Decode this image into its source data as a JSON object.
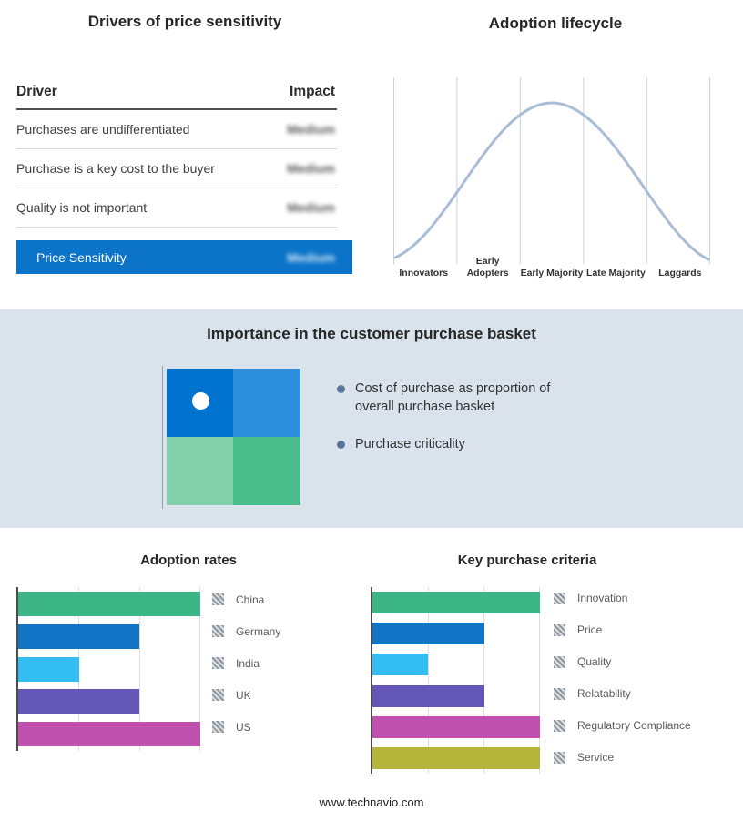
{
  "drivers": {
    "title": "Drivers of price sensitivity",
    "columns": {
      "driver": "Driver",
      "impact": "Impact"
    },
    "rows": [
      {
        "driver": "Purchases are undifferentiated",
        "impact": "Medium"
      },
      {
        "driver": "Purchase is a key cost to the buyer",
        "impact": "Medium"
      },
      {
        "driver": "Quality is not important",
        "impact": "Medium"
      }
    ],
    "highlight_row": {
      "driver": "Price Sensitivity",
      "impact": "Medium"
    },
    "highlight_color": "#0b74c9"
  },
  "basket": {
    "title": "Importance in the customer purchase basket",
    "bullets": [
      "Cost of purchase as proportion of overall purchase basket",
      "Purchase criticality"
    ],
    "quadrant_colors": {
      "top_left": "#0072d0",
      "top_right": "#2e8ede",
      "bottom_left": "#82cfab",
      "bottom_right": "#49bd8c"
    },
    "band_color": "#dae2ec"
  },
  "chart_data": [
    {
      "type": "line",
      "title": "Adoption lifecycle",
      "shape": "bell-curve",
      "stages": [
        "Innovators",
        "Early Adopters",
        "Early Majority",
        "Late Majority",
        "Laggards"
      ],
      "line_color": "#a9bdd6",
      "grid": "vertical-only"
    },
    {
      "type": "bar",
      "title": "Adoption rates",
      "orientation": "horizontal",
      "max": 3,
      "bars": [
        {
          "label": "China",
          "value": 3,
          "color": "#3cb587"
        },
        {
          "label": "Germany",
          "value": 2,
          "color": "#1274c5"
        },
        {
          "label": "India",
          "value": 1,
          "color": "#33bdf2"
        },
        {
          "label": "UK",
          "value": 2,
          "color": "#6456b7"
        },
        {
          "label": "US",
          "value": 3,
          "color": "#c051ae"
        }
      ]
    },
    {
      "type": "bar",
      "title": "Key purchase criteria",
      "orientation": "horizontal",
      "max": 3,
      "bars": [
        {
          "label": "Innovation",
          "value": 3,
          "color": "#3cb587"
        },
        {
          "label": "Price",
          "value": 2,
          "color": "#1274c5"
        },
        {
          "label": "Quality",
          "value": 1,
          "color": "#33bdf2"
        },
        {
          "label": "Relatability",
          "value": 2,
          "color": "#6456b7"
        },
        {
          "label": "Regulatory Compliance",
          "value": 3,
          "color": "#c051ae"
        },
        {
          "label": "Service",
          "value": 3,
          "color": "#b5b53c"
        }
      ]
    }
  ],
  "footer": "www.technavio.com"
}
